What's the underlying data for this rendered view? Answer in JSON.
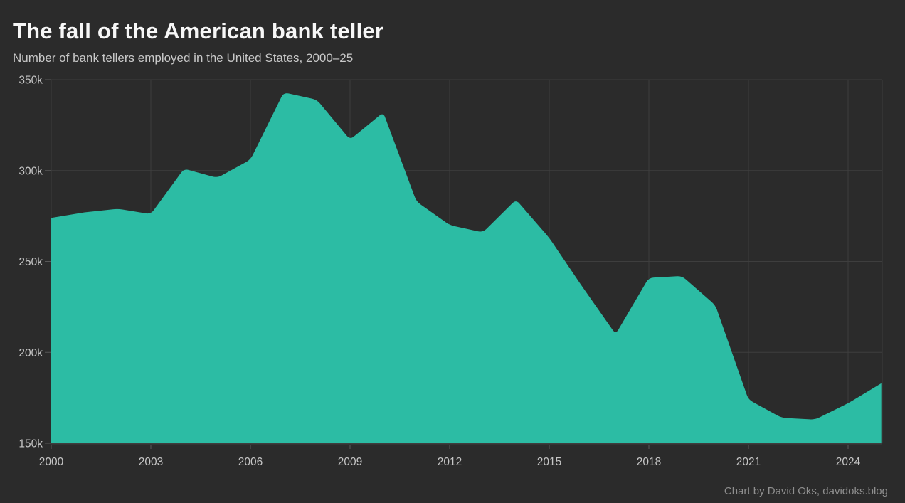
{
  "chart_data": {
    "type": "area",
    "title": "The fall of the American bank teller",
    "subtitle": "Number of bank tellers employed in the United States, 2000–25",
    "credit": "Chart by David Oks, davidoks.blog",
    "x": [
      2000,
      2001,
      2002,
      2003,
      2004,
      2005,
      2006,
      2007,
      2008,
      2009,
      2010,
      2011,
      2012,
      2013,
      2014,
      2015,
      2016,
      2017,
      2018,
      2019,
      2020,
      2021,
      2022,
      2023,
      2024,
      2025
    ],
    "values": [
      274000,
      277000,
      279000,
      276000,
      301000,
      296000,
      306000,
      343000,
      339000,
      317000,
      332000,
      283000,
      270000,
      266000,
      284000,
      263000,
      236000,
      210000,
      241000,
      242000,
      226000,
      174000,
      164000,
      163000,
      172000,
      183000
    ],
    "value_unit": "tellers",
    "xlabel": "",
    "ylabel": "",
    "xlim": [
      2000,
      2025
    ],
    "ylim": [
      150000,
      350000
    ],
    "xticks": [
      2000,
      2003,
      2006,
      2009,
      2012,
      2015,
      2018,
      2021,
      2024
    ],
    "xtick_labels": [
      "2000",
      "2003",
      "2006",
      "2009",
      "2012",
      "2015",
      "2018",
      "2021",
      "2024"
    ],
    "yticks": [
      150000,
      200000,
      250000,
      300000,
      350000
    ],
    "ytick_labels": [
      "150k",
      "200k",
      "250k",
      "300k",
      "350k"
    ],
    "grid": true,
    "legend": false,
    "colors": {
      "area_fill": "#2cbca4",
      "background": "#2b2b2b",
      "title_text": "#f7f7f7",
      "subtitle_text": "#c9c9c9",
      "tick_text": "#c6c6c6",
      "gridline": "#3e3e3e",
      "tick_mark": "#585858",
      "credit_text": "#8f8f8f"
    }
  }
}
